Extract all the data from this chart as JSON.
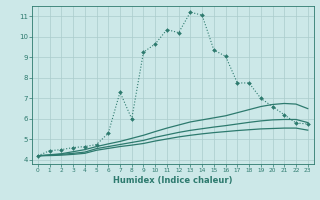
{
  "xlabel": "Humidex (Indice chaleur)",
  "bg_color": "#cce8e8",
  "grid_color": "#aacccc",
  "line_color": "#2d7a6e",
  "xlim": [
    -0.5,
    23.5
  ],
  "ylim": [
    3.8,
    11.5
  ],
  "xticks": [
    0,
    1,
    2,
    3,
    4,
    5,
    6,
    7,
    8,
    9,
    10,
    11,
    12,
    13,
    14,
    15,
    16,
    17,
    18,
    19,
    20,
    21,
    22,
    23
  ],
  "yticks": [
    4,
    5,
    6,
    7,
    8,
    9,
    10,
    11
  ],
  "main_x": [
    0,
    1,
    2,
    3,
    4,
    5,
    6,
    7,
    8,
    9,
    10,
    11,
    12,
    13,
    14,
    15,
    16,
    17,
    18,
    19,
    20,
    21,
    22,
    23
  ],
  "main_y": [
    4.2,
    4.45,
    4.5,
    4.6,
    4.65,
    4.75,
    5.3,
    7.3,
    6.0,
    9.25,
    9.65,
    10.35,
    10.2,
    11.2,
    11.05,
    9.35,
    9.05,
    7.75,
    7.75,
    7.0,
    6.6,
    6.2,
    5.8,
    5.75
  ],
  "line2_x": [
    0,
    1,
    2,
    3,
    4,
    5,
    6,
    7,
    8,
    9,
    10,
    11,
    12,
    13,
    14,
    15,
    16,
    17,
    18,
    19,
    20,
    21,
    22,
    23
  ],
  "line2_y": [
    4.2,
    4.25,
    4.3,
    4.4,
    4.5,
    4.65,
    4.78,
    4.9,
    5.05,
    5.2,
    5.38,
    5.55,
    5.7,
    5.85,
    5.95,
    6.05,
    6.15,
    6.3,
    6.45,
    6.6,
    6.7,
    6.75,
    6.72,
    6.5
  ],
  "line3_x": [
    0,
    1,
    2,
    3,
    4,
    5,
    6,
    7,
    8,
    9,
    10,
    11,
    12,
    13,
    14,
    15,
    16,
    17,
    18,
    19,
    20,
    21,
    22,
    23
  ],
  "line3_y": [
    4.2,
    4.23,
    4.27,
    4.32,
    4.38,
    4.55,
    4.65,
    4.75,
    4.85,
    4.95,
    5.1,
    5.22,
    5.34,
    5.44,
    5.52,
    5.6,
    5.67,
    5.75,
    5.83,
    5.9,
    5.95,
    5.97,
    5.97,
    5.82
  ],
  "line4_x": [
    0,
    1,
    2,
    3,
    4,
    5,
    6,
    7,
    8,
    9,
    10,
    11,
    12,
    13,
    14,
    15,
    16,
    17,
    18,
    19,
    20,
    21,
    22,
    23
  ],
  "line4_y": [
    4.2,
    4.21,
    4.23,
    4.27,
    4.32,
    4.47,
    4.56,
    4.65,
    4.72,
    4.8,
    4.92,
    5.02,
    5.12,
    5.2,
    5.27,
    5.33,
    5.38,
    5.43,
    5.47,
    5.51,
    5.53,
    5.55,
    5.55,
    5.45
  ]
}
